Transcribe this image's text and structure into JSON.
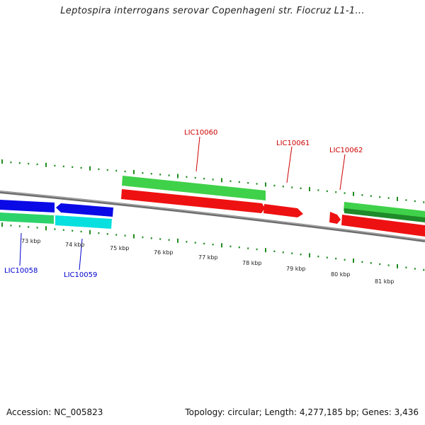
{
  "title": "Leptospira interrogans serovar Copenhageni str. Fiocruz L1-1...",
  "footer": {
    "accession": "Accession: NC_005823",
    "stats": "Topology: circular; Length: 4,277,185 bp; Genes: 3,436"
  },
  "colors": {
    "forward_gene": "#33cc33",
    "reverse_gene": "#ff0000",
    "forward_blue": "#0000ee",
    "reverse_cyan": "#00e6e6",
    "tick": "#228b22",
    "backbone": "#888888"
  },
  "scale_labels": [
    "73 kbp",
    "74 kbp",
    "75 kbp",
    "76 kbp",
    "77 kbp",
    "78 kbp",
    "79 kbp",
    "80 kbp",
    "81 kbp"
  ],
  "gene_labels": [
    {
      "text": "LIC10058",
      "color": "#0000cc"
    },
    {
      "text": "LIC10059",
      "color": "#0000cc"
    },
    {
      "text": "LIC10060",
      "color": "#cc0000"
    },
    {
      "text": "LIC10061",
      "color": "#cc0000"
    },
    {
      "text": "LIC10062",
      "color": "#cc0000"
    }
  ]
}
